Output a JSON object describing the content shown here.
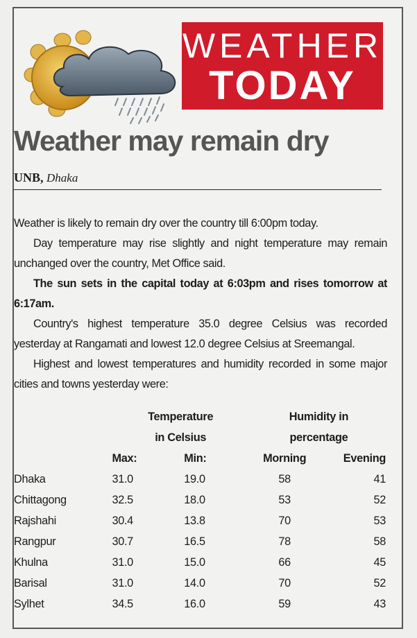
{
  "banner": {
    "line1": "WEATHER",
    "line2": "TODAY"
  },
  "headline": "Weather may remain dry",
  "byline": {
    "source": "UNB,",
    "location": "Dhaka"
  },
  "paragraphs": [
    "Weather is likely to remain dry over the country till 6:00pm today.",
    "Day temperature may rise slightly and night temperature may remain unchanged over the country, Met Office said.",
    "The sun sets in the capital today at 6:03pm and rises tomorrow at 6:17am.",
    "Country's highest temperature 35.0 degree Celsius was recorded yesterday at Rangamati and lowest 12.0 degree Celsius at Sreemangal.",
    "Highest and lowest temperatures and humidity recorded in some major cities and towns yesterday were:"
  ],
  "table": {
    "group_temp": [
      "Temperature",
      "in Celsius"
    ],
    "group_hum": [
      "Humidity in",
      "percentage"
    ],
    "columns": [
      "Max:",
      "Min:",
      "Morning",
      "Evening"
    ],
    "rows": [
      [
        "Dhaka",
        "31.0",
        "19.0",
        "58",
        "41"
      ],
      [
        "Chittagong",
        "32.5",
        "18.0",
        "53",
        "52"
      ],
      [
        "Rajshahi",
        "30.4",
        "13.8",
        "70",
        "53"
      ],
      [
        "Rangpur",
        "30.7",
        "16.5",
        "78",
        "58"
      ],
      [
        "Khulna",
        "31.0",
        "15.0",
        "66",
        "45"
      ],
      [
        "Barisal",
        "31.0",
        "14.0",
        "70",
        "52"
      ],
      [
        "Sylhet",
        "34.5",
        "16.0",
        "59",
        "43"
      ]
    ]
  },
  "colors": {
    "banner_red": "#d01b2a",
    "headline_gray": "#555555"
  },
  "icons": [
    "sun-icon",
    "rain-cloud-icon"
  ]
}
